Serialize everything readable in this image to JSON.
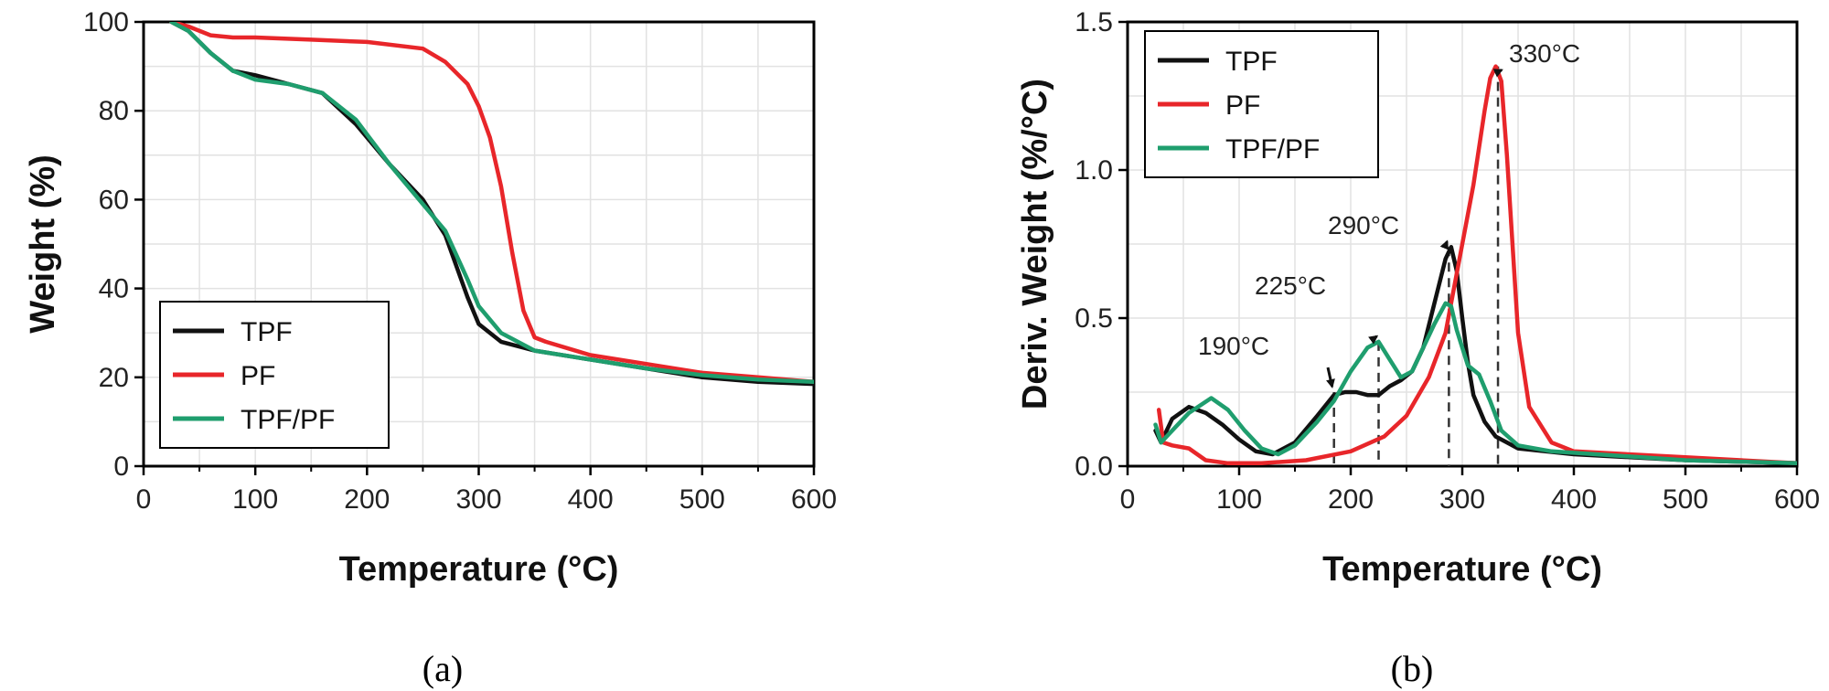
{
  "panel_labels": {
    "a": "(a)",
    "b": "(b)"
  },
  "colors": {
    "TPF": "#111111",
    "PF": "#e8262a",
    "TPF/PF": "#1f9e6e"
  },
  "chart_data": [
    {
      "type": "line",
      "panel": "(a)",
      "title": "",
      "xlabel": "Temperature (°C)",
      "ylabel": "Weight (%)",
      "xlim": [
        0,
        600
      ],
      "ylim": [
        0,
        100
      ],
      "xticks": [
        0,
        100,
        200,
        300,
        400,
        500,
        600
      ],
      "yticks": [
        0,
        20,
        40,
        60,
        80,
        100
      ],
      "grid": true,
      "legend_position": "bottom-left",
      "series": [
        {
          "name": "TPF",
          "color": "#111111",
          "x": [
            25,
            40,
            60,
            80,
            100,
            130,
            160,
            190,
            220,
            250,
            270,
            290,
            300,
            320,
            350,
            400,
            450,
            500,
            550,
            600
          ],
          "y": [
            100,
            98,
            93,
            89,
            88,
            86,
            84,
            77,
            68,
            60,
            52,
            38,
            32,
            28,
            26,
            24,
            22,
            20,
            19,
            18.5
          ]
        },
        {
          "name": "PF",
          "color": "#e8262a",
          "x": [
            25,
            40,
            60,
            80,
            100,
            150,
            200,
            250,
            270,
            290,
            300,
            310,
            320,
            330,
            340,
            350,
            360,
            400,
            450,
            500,
            550,
            600
          ],
          "y": [
            100,
            99,
            97,
            96.5,
            96.5,
            96,
            95.5,
            94,
            91,
            86,
            81,
            74,
            63,
            48,
            35,
            29,
            28,
            25,
            23,
            21,
            20,
            19
          ]
        },
        {
          "name": "TPF/PF",
          "color": "#1f9e6e",
          "x": [
            25,
            40,
            60,
            80,
            100,
            130,
            160,
            190,
            220,
            250,
            270,
            290,
            300,
            320,
            350,
            400,
            450,
            500,
            550,
            600
          ],
          "y": [
            100,
            98,
            93,
            89,
            87,
            86,
            84,
            78,
            68,
            59,
            53,
            42,
            36,
            30,
            26,
            24,
            22,
            20.5,
            19.5,
            19
          ]
        }
      ]
    },
    {
      "type": "line",
      "panel": "(b)",
      "title": "",
      "xlabel": "Temperature (°C)",
      "ylabel": "Deriv. Weight (%/°C)",
      "xlim": [
        0,
        600
      ],
      "ylim": [
        0,
        1.5
      ],
      "xticks": [
        0,
        100,
        200,
        300,
        400,
        500,
        600
      ],
      "yticks": [
        0.0,
        0.5,
        1.0,
        1.5
      ],
      "ytick_labels": [
        "0.0",
        "0.5",
        "1.0",
        "1.5"
      ],
      "grid": true,
      "legend_position": "top-left",
      "series": [
        {
          "name": "TPF",
          "color": "#111111",
          "x": [
            25,
            30,
            40,
            55,
            70,
            85,
            100,
            115,
            130,
            150,
            170,
            185,
            195,
            205,
            215,
            225,
            235,
            245,
            255,
            265,
            275,
            285,
            290,
            295,
            300,
            305,
            310,
            320,
            330,
            350,
            400,
            500,
            600
          ],
          "y": [
            0.12,
            0.08,
            0.16,
            0.2,
            0.18,
            0.14,
            0.09,
            0.05,
            0.04,
            0.08,
            0.17,
            0.24,
            0.25,
            0.25,
            0.24,
            0.24,
            0.27,
            0.29,
            0.32,
            0.4,
            0.55,
            0.7,
            0.74,
            0.66,
            0.5,
            0.35,
            0.24,
            0.15,
            0.1,
            0.06,
            0.04,
            0.02,
            0.01
          ]
        },
        {
          "name": "PF",
          "color": "#e8262a",
          "x": [
            28,
            32,
            40,
            55,
            70,
            90,
            120,
            160,
            200,
            230,
            250,
            270,
            285,
            300,
            310,
            320,
            325,
            330,
            335,
            340,
            345,
            350,
            360,
            380,
            400,
            500,
            600
          ],
          "y": [
            0.19,
            0.08,
            0.07,
            0.06,
            0.02,
            0.01,
            0.01,
            0.02,
            0.05,
            0.1,
            0.17,
            0.3,
            0.45,
            0.75,
            0.95,
            1.2,
            1.31,
            1.35,
            1.3,
            1.05,
            0.75,
            0.45,
            0.2,
            0.08,
            0.05,
            0.03,
            0.01
          ]
        },
        {
          "name": "TPF/PF",
          "color": "#1f9e6e",
          "x": [
            25,
            30,
            40,
            55,
            75,
            90,
            105,
            120,
            135,
            150,
            170,
            185,
            200,
            215,
            225,
            235,
            245,
            255,
            265,
            275,
            285,
            290,
            295,
            305,
            315,
            325,
            335,
            350,
            380,
            420,
            500,
            600
          ],
          "y": [
            0.14,
            0.08,
            0.12,
            0.18,
            0.23,
            0.19,
            0.12,
            0.06,
            0.04,
            0.07,
            0.15,
            0.22,
            0.32,
            0.4,
            0.42,
            0.36,
            0.3,
            0.32,
            0.4,
            0.48,
            0.55,
            0.54,
            0.46,
            0.34,
            0.31,
            0.22,
            0.12,
            0.07,
            0.05,
            0.04,
            0.02,
            0.01
          ]
        }
      ],
      "annotations": [
        {
          "text": "190°C",
          "x": 185,
          "y": 0.25,
          "dashed_line": true
        },
        {
          "text": "225°C",
          "x": 225,
          "y": 0.42,
          "dashed_line": true
        },
        {
          "text": "290°C",
          "x": 288,
          "y": 0.74,
          "dashed_line": true
        },
        {
          "text": "330°C",
          "x": 332,
          "y": 1.35,
          "dashed_line": true
        }
      ]
    }
  ]
}
